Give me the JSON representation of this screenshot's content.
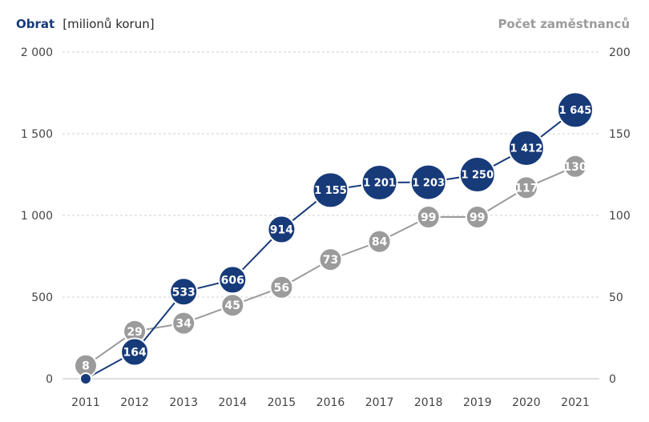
{
  "chart_data": {
    "type": "line",
    "x": [
      "2011",
      "2012",
      "2013",
      "2014",
      "2015",
      "2016",
      "2017",
      "2018",
      "2019",
      "2020",
      "2021"
    ],
    "y_left": {
      "title": "Obrat",
      "unit": "[milionů korun]",
      "ylim": [
        0,
        2000
      ],
      "ticks": [
        0,
        500,
        1000,
        1500,
        2000
      ],
      "tick_labels": [
        "0",
        "500",
        "1 000",
        "1 500",
        "2 000"
      ]
    },
    "y_right": {
      "title": "Počet zaměstnanců",
      "ylim": [
        0,
        200
      ],
      "ticks": [
        0,
        50,
        100,
        150,
        200
      ],
      "tick_labels": [
        "0",
        "50",
        "100",
        "150",
        "200"
      ]
    },
    "series": [
      {
        "name": "Obrat",
        "axis": "left",
        "color": "#173a79",
        "values": [
          0,
          164,
          533,
          606,
          914,
          1155,
          1201,
          1203,
          1250,
          1412,
          1645
        ],
        "labels": [
          "",
          "164",
          "533",
          "606",
          "914",
          "1 155",
          "1 201",
          "1 203",
          "1 250",
          "1 412",
          "1 645"
        ]
      },
      {
        "name": "Počet zaměstnanců",
        "axis": "right",
        "color": "#9b9b9b",
        "values": [
          8,
          29,
          34,
          45,
          56,
          73,
          84,
          99,
          99,
          117,
          130
        ],
        "labels": [
          "8",
          "29",
          "34",
          "45",
          "56",
          "73",
          "84",
          "99",
          "99",
          "117",
          "130"
        ]
      }
    ],
    "grid": true,
    "legend": "none"
  }
}
